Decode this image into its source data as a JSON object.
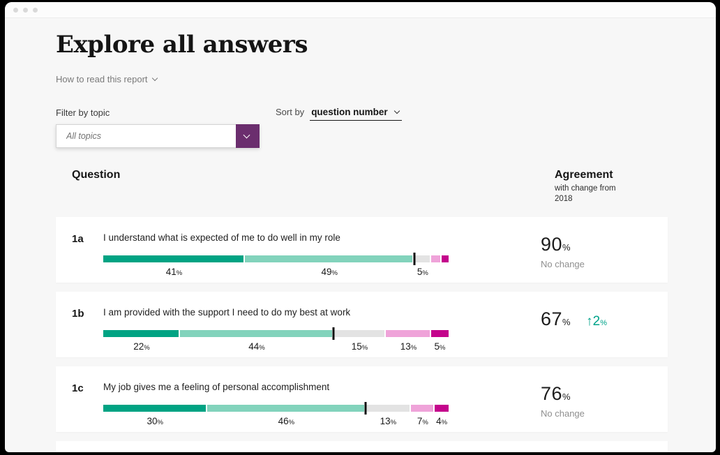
{
  "page": {
    "title": "Explore all answers",
    "how_to_read_label": "How to read this report",
    "filter": {
      "label": "Filter by topic",
      "placeholder": "All topics"
    },
    "sort": {
      "label": "Sort by",
      "value": "question number"
    },
    "table_header": {
      "question": "Question",
      "agreement": "Agreement",
      "agreement_sub": "with change from 2018"
    }
  },
  "colors": {
    "accent_purple": "#6B2E6E",
    "teal_dark": "#00A383",
    "teal_light": "#82D3BC",
    "gray_neutral": "#E3E3E3",
    "pink": "#EFA3D9",
    "magenta": "#C4048C",
    "change_up_green": "#00A38A",
    "marker_black": "#111111"
  },
  "chart_data": {
    "type": "bar",
    "subtype": "horizontal-stacked",
    "unit": "%",
    "xlim": [
      0,
      100
    ],
    "rows": [
      {
        "id": "1a",
        "question": "I understand what is expected of me to do well in my role",
        "agreement": 90,
        "change": {
          "type": "none",
          "text": "No change"
        },
        "marker": 90,
        "segments": [
          {
            "color": "teal_dark",
            "value": 41,
            "label": "41"
          },
          {
            "color": "teal_light",
            "value": 49,
            "label": "49"
          },
          {
            "color": "gray_neutral",
            "value": 5,
            "label": "5"
          },
          {
            "color": "pink",
            "value": 3,
            "label": ""
          },
          {
            "color": "magenta",
            "value": 2,
            "label": ""
          }
        ]
      },
      {
        "id": "1b",
        "question": "I am provided with the support I need to do my best at work",
        "agreement": 67,
        "change": {
          "type": "up",
          "value": 2
        },
        "marker": 66,
        "segments": [
          {
            "color": "teal_dark",
            "value": 22,
            "label": "22"
          },
          {
            "color": "teal_light",
            "value": 44,
            "label": "44"
          },
          {
            "color": "gray_neutral",
            "value": 15,
            "label": "15"
          },
          {
            "color": "pink",
            "value": 13,
            "label": "13"
          },
          {
            "color": "magenta",
            "value": 5,
            "label": "5"
          }
        ]
      },
      {
        "id": "1c",
        "question": "My job gives me a feeling of personal accomplishment",
        "agreement": 76,
        "change": {
          "type": "none",
          "text": "No change"
        },
        "marker": 76,
        "segments": [
          {
            "color": "teal_dark",
            "value": 30,
            "label": "30"
          },
          {
            "color": "teal_light",
            "value": 46,
            "label": "46"
          },
          {
            "color": "gray_neutral",
            "value": 13,
            "label": "13"
          },
          {
            "color": "pink",
            "value": 7,
            "label": "7"
          },
          {
            "color": "magenta",
            "value": 4,
            "label": "4"
          }
        ]
      }
    ]
  }
}
